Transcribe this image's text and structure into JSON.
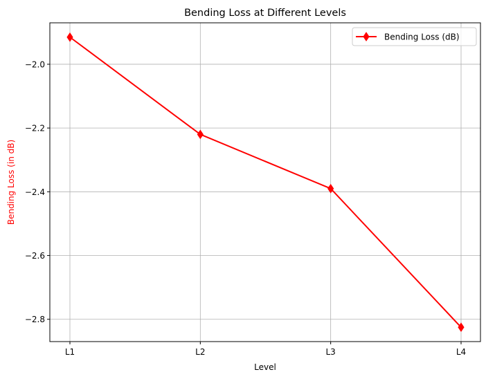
{
  "chart_data": {
    "type": "line",
    "title": "Bending Loss at Different Levels",
    "xlabel": "Level",
    "ylabel": "Bending Loss (in dB)",
    "categories": [
      "L1",
      "L2",
      "L3",
      "L4"
    ],
    "series": [
      {
        "name": "Bending Loss (dB)",
        "values": [
          -1.915,
          -2.22,
          -2.39,
          -2.825
        ],
        "color": "#ff0000",
        "marker": "diamond"
      }
    ],
    "ylim": [
      -2.87,
      -1.87
    ],
    "yticks": [
      -2.0,
      -2.2,
      -2.4,
      -2.6,
      -2.8
    ],
    "ytick_labels": [
      "−2.0",
      "−2.2",
      "−2.4",
      "−2.6",
      "−2.8"
    ],
    "grid": true,
    "legend_position": "top-right",
    "ylabel_color": "#ff0000"
  }
}
